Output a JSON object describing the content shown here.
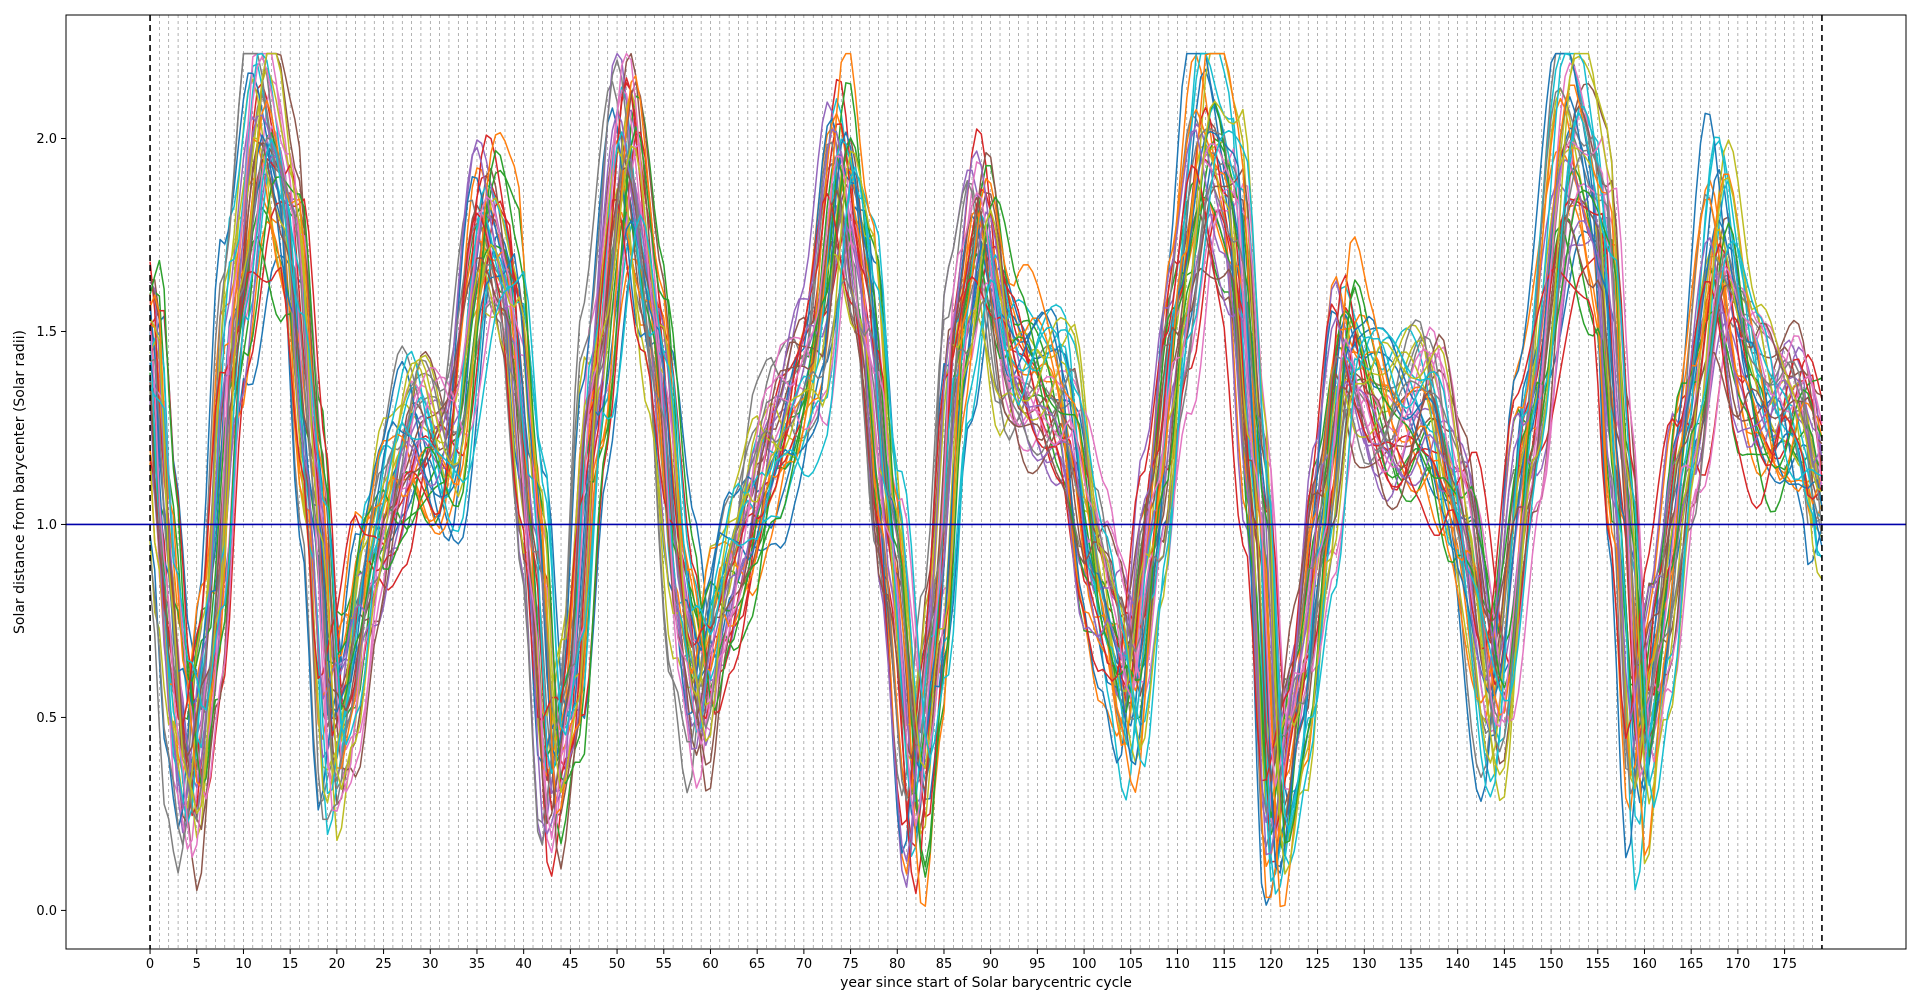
{
  "chart_data": {
    "type": "line",
    "title": "",
    "xlabel": "year since start of Solar barycentric cycle",
    "ylabel": "Solar distance from barycenter (Solar radii)",
    "xlim": [
      -9,
      188
    ],
    "ylim": [
      -0.1,
      2.32
    ],
    "x_ticks": [
      0,
      5,
      10,
      15,
      20,
      25,
      30,
      35,
      40,
      45,
      50,
      55,
      60,
      65,
      70,
      75,
      80,
      85,
      90,
      95,
      100,
      105,
      110,
      115,
      120,
      125,
      130,
      135,
      140,
      145,
      150,
      155,
      160,
      165,
      170,
      175
    ],
    "y_ticks": [
      0.0,
      0.5,
      1.0,
      1.5,
      2.0
    ],
    "y_tick_labels": [
      "0.0",
      "0.5",
      "1.0",
      "1.5",
      "2.0"
    ],
    "reference_line": {
      "y": 1.0,
      "color": "#0000aa"
    },
    "cycle_boundaries": [
      0,
      179
    ],
    "yearly_gridlines": {
      "from": 1,
      "to": 178,
      "step": 1,
      "color": "#7f7f7f",
      "style": "dashed"
    },
    "grid": false,
    "legend": "none",
    "series_color_cycle": [
      "#1f77b4",
      "#ff7f0e",
      "#2ca02c",
      "#d62728",
      "#9467bd",
      "#8c564b",
      "#e377c2",
      "#7f7f7f",
      "#bcbd22",
      "#17becf"
    ],
    "series_count": 40,
    "series_template": {
      "x": [
        0,
        1.5,
        3,
        4.5,
        6.5,
        9,
        12,
        15,
        17.5,
        19.5,
        21,
        23.5,
        26,
        28.5,
        32,
        36,
        38.5,
        41,
        43,
        45,
        47.5,
        51,
        54,
        57,
        59,
        61,
        63.5,
        66,
        68,
        71,
        74,
        76.5,
        79,
        82,
        84,
        86.5,
        89,
        92,
        95,
        98,
        101,
        103,
        105,
        107.5,
        110,
        113,
        116,
        118.5,
        120.5,
        123,
        125.5,
        128,
        130,
        133,
        137,
        140,
        144,
        147.5,
        152,
        155.5,
        157.5,
        159.5,
        161.5,
        164.5,
        168,
        171,
        174,
        176,
        178,
        179
      ],
      "y": [
        1.5,
        0.95,
        0.55,
        0.35,
        0.7,
        1.5,
        2.0,
        1.75,
        1.1,
        0.45,
        0.55,
        0.9,
        1.1,
        1.25,
        1.15,
        1.75,
        1.6,
        1.0,
        0.35,
        0.55,
        1.3,
        1.95,
        1.5,
        0.8,
        0.55,
        0.8,
        0.95,
        1.15,
        1.25,
        1.4,
        1.9,
        1.6,
        1.0,
        0.3,
        0.7,
        1.45,
        1.75,
        1.4,
        1.35,
        1.3,
        0.9,
        0.75,
        0.55,
        1.0,
        1.5,
        1.95,
        1.8,
        1.1,
        0.25,
        0.55,
        1.0,
        1.45,
        1.35,
        1.25,
        1.3,
        1.05,
        0.55,
        1.2,
        1.95,
        1.75,
        1.1,
        0.4,
        0.7,
        1.2,
        1.7,
        1.4,
        1.25,
        1.3,
        1.2,
        1.05
      ]
    }
  }
}
